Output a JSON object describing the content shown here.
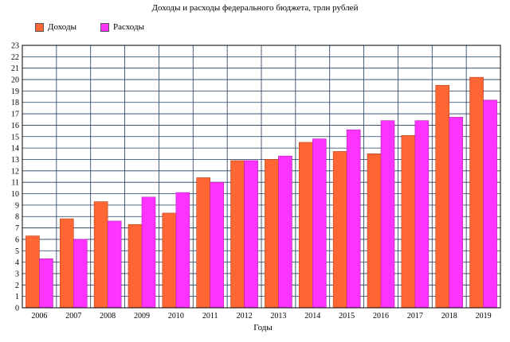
{
  "chart_data": {
    "type": "bar",
    "title": "Доходы и расходы федерального бюджета, трлн рублей",
    "xlabel": "Годы",
    "ylabel": "",
    "ylim": [
      0,
      23
    ],
    "grid": true,
    "legend_position": "top-left",
    "categories": [
      "2006",
      "2007",
      "2008",
      "2009",
      "2010",
      "2011",
      "2012",
      "2013",
      "2014",
      "2015",
      "2016",
      "2017",
      "2018",
      "2019"
    ],
    "yticks": [
      "0",
      "1",
      "2",
      "3",
      "4",
      "5",
      "6",
      "7",
      "8",
      "9",
      "10",
      "11",
      "12",
      "13",
      "14",
      "15",
      "16",
      "17",
      "18",
      "19",
      "20",
      "21",
      "22",
      "23"
    ],
    "series": [
      {
        "name": "Доходы",
        "color": "#ff6633",
        "values": [
          6.3,
          7.8,
          9.3,
          7.3,
          8.3,
          11.4,
          12.9,
          13.0,
          14.5,
          13.7,
          13.5,
          15.1,
          19.5,
          20.2
        ]
      },
      {
        "name": "Расходы",
        "color": "#ff33ff",
        "values": [
          4.3,
          6.0,
          7.6,
          9.7,
          10.1,
          11.0,
          12.9,
          13.3,
          14.8,
          15.6,
          16.4,
          16.4,
          16.7,
          18.2
        ]
      }
    ]
  }
}
